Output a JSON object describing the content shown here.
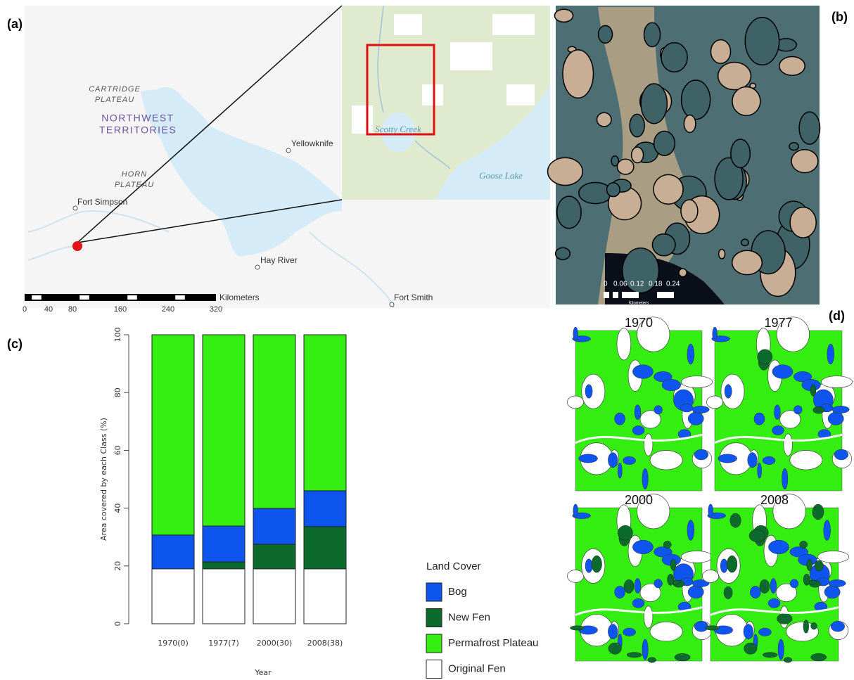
{
  "panels": {
    "a": "(a)",
    "b": "(b)",
    "c": "(c)",
    "d": "(d)"
  },
  "map_a": {
    "region_1": [
      "CARTRIDGE",
      "PLATEAU"
    ],
    "territory": [
      "NORTHWEST",
      "TERRITORIES"
    ],
    "region_2": [
      "HORN",
      "PLATEAU"
    ],
    "places": [
      "Yellowknife",
      "Fort Simpson",
      "Hay River",
      "Fort Smith"
    ],
    "site": "Scotty Creek",
    "lake": "Goose Lake",
    "scale_unit": "Kilometers",
    "scale_ticks": [
      0,
      40,
      80,
      160,
      240,
      320
    ]
  },
  "map_b": {
    "scale_ticks": [
      "0",
      "0.06",
      "0.12",
      "0.18",
      "0.24"
    ],
    "scale_unit": "Kilometers"
  },
  "map_d": {
    "years": [
      "1970",
      "1977",
      "2000",
      "2008"
    ]
  },
  "chart_data": {
    "type": "stacked_bar",
    "categories": [
      "1970(0)",
      "1977(7)",
      "2000(30)",
      "2008(38)"
    ],
    "x_label": "Year",
    "y_label": "Area covered by each Class (%)",
    "ylim": [
      0,
      100
    ],
    "yticks": [
      0,
      20,
      40,
      60,
      80,
      100
    ],
    "legend_title": "Land Cover",
    "series": [
      {
        "name": "Bog",
        "color": "#0d55ee",
        "values": [
          11.7,
          12.4,
          12.4,
          12.4
        ]
      },
      {
        "name": "New Fen",
        "color": "#0b6a2c",
        "values": [
          0,
          2.4,
          8.5,
          14.6
        ]
      },
      {
        "name": "Permafrost Plateau",
        "color": "#33ee10",
        "values": [
          69.3,
          66.2,
          60.1,
          54.0
        ]
      },
      {
        "name": "Original Fen",
        "color": "#ffffff",
        "values": [
          19.0,
          19.0,
          19.0,
          19.0
        ]
      }
    ]
  }
}
